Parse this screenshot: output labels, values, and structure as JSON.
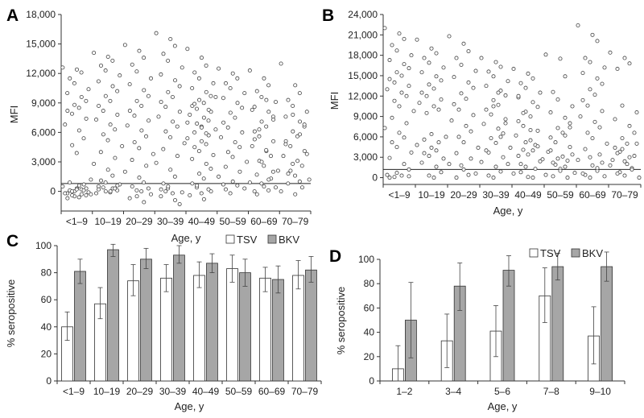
{
  "figure": {
    "colors": {
      "tsv": "#ffffff",
      "bkv": "#a6a6a6",
      "stroke": "#333333",
      "dot": "#444444"
    }
  },
  "chart_data": [
    {
      "panel": "A",
      "type": "scatter",
      "xlabel": "Age, y",
      "ylabel": "MFI",
      "categories": [
        "<1–9",
        "10–19",
        "20–29",
        "30–39",
        "40–49",
        "50–59",
        "60–69",
        "70–79"
      ],
      "ylim": [
        -2000,
        18000
      ],
      "yticks": [
        0,
        3000,
        6000,
        9000,
        12000,
        15000,
        18000
      ],
      "ytick_labels": [
        "0",
        "3,000",
        "6,000",
        "9,000",
        "12,000",
        "15,000",
        "18,000"
      ],
      "cutoff": 800,
      "series": [
        {
          "values": [
            12600,
            12400,
            12100,
            11500,
            11000,
            10400,
            10000,
            9600,
            9200,
            8800,
            8500,
            8200,
            7900,
            7400,
            6800,
            6200,
            5400,
            4700,
            3900,
            1200,
            900,
            700,
            500,
            300,
            200,
            100,
            0,
            -100,
            -200,
            -300,
            -400,
            -500,
            -600,
            -700,
            0,
            300,
            -200,
            600,
            100,
            -400,
            200,
            -300
          ]
        },
        {
          "values": [
            14100,
            13700,
            13300,
            12800,
            12300,
            11800,
            11200,
            10700,
            10200,
            9700,
            9200,
            8700,
            8200,
            7800,
            7300,
            6800,
            6300,
            5800,
            5200,
            4600,
            4000,
            3400,
            2800,
            2200,
            1600,
            1100,
            900,
            700,
            500,
            300,
            100,
            0,
            -100,
            200,
            400,
            600,
            -200,
            0,
            300
          ]
        },
        {
          "values": [
            14900,
            14300,
            13600,
            12900,
            12200,
            11500,
            10900,
            10300,
            9700,
            9200,
            8700,
            8200,
            7700,
            7200,
            6700,
            6200,
            5600,
            5000,
            4400,
            3800,
            3200,
            2600,
            2000,
            1400,
            900,
            500,
            100,
            -300,
            -700,
            -1100,
            300,
            -500,
            0
          ]
        },
        {
          "values": [
            16100,
            15500,
            14800,
            14000,
            13300,
            12600,
            11900,
            11300,
            10700,
            10100,
            9600,
            9100,
            8600,
            8100,
            7600,
            7100,
            6600,
            6100,
            5500,
            4900,
            4300,
            3600,
            2900,
            2200,
            1500,
            800,
            300,
            -100,
            -500,
            -900,
            -1300,
            500,
            -200,
            200,
            0
          ]
        },
        {
          "values": [
            14500,
            13600,
            12800,
            12100,
            11500,
            11000,
            10500,
            10100,
            9700,
            9300,
            9000,
            8700,
            8400,
            8100,
            7800,
            7500,
            7200,
            6900,
            6600,
            6300,
            6000,
            5700,
            5400,
            5100,
            4800,
            4500,
            4100,
            3700,
            3300,
            2800,
            2300,
            1800,
            1300,
            800,
            400,
            0,
            -400,
            -800,
            200,
            600,
            -200,
            9600,
            8900,
            8300,
            7000,
            6500,
            5900
          ]
        },
        {
          "values": [
            12500,
            12000,
            11500,
            11000,
            10500,
            10000,
            9500,
            9000,
            8500,
            8000,
            7500,
            7000,
            6500,
            6000,
            5500,
            5000,
            4500,
            4000,
            3500,
            3000,
            2500,
            2000,
            1500,
            1000,
            600,
            200,
            -200,
            300,
            700
          ]
        },
        {
          "values": [
            12300,
            11500,
            10800,
            10200,
            9600,
            9100,
            8600,
            8100,
            7600,
            7100,
            6600,
            6100,
            5600,
            5100,
            4600,
            4100,
            3600,
            3100,
            2600,
            2100,
            1700,
            1300,
            900,
            500,
            100,
            -300,
            800,
            400,
            0,
            1200,
            2000,
            3000,
            4200,
            5300,
            6300,
            7300,
            8300,
            9300
          ]
        },
        {
          "values": [
            13000,
            10800,
            10000,
            9300,
            8700,
            8100,
            7600,
            7100,
            6600,
            6100,
            5600,
            5100,
            4600,
            4100,
            3600,
            3100,
            2600,
            2100,
            1600,
            1200,
            800,
            400,
            0,
            -300,
            1000,
            1800,
            2800,
            3800,
            4800,
            5800,
            6800,
            7800
          ]
        }
      ]
    },
    {
      "panel": "B",
      "type": "scatter",
      "xlabel": "Age, y",
      "ylabel": "MFI",
      "categories": [
        "<1–9",
        "10–19",
        "20–29",
        "30–39",
        "40–49",
        "50–59",
        "60–69",
        "70–79"
      ],
      "ylim": [
        -1000,
        24000
      ],
      "yticks": [
        0,
        3000,
        6000,
        9000,
        12000,
        15000,
        18000,
        21000,
        24000
      ],
      "ytick_labels": [
        "0",
        "3,000",
        "6,000",
        "9,000",
        "12,000",
        "15,000",
        "18,000",
        "21,000",
        "24,000"
      ],
      "cutoff": 1200,
      "series": [
        {
          "values": [
            22000,
            21200,
            20400,
            19500,
            18700,
            18000,
            17300,
            16700,
            16100,
            15500,
            15000,
            14500,
            14000,
            13500,
            13000,
            12500,
            12000,
            11300,
            10500,
            9800,
            8800,
            8000,
            7300,
            6600,
            5900,
            5200,
            4500,
            3700,
            2900,
            2000,
            1200,
            700,
            300,
            0,
            100,
            200,
            400
          ]
        },
        {
          "values": [
            20300,
            19000,
            18300,
            17600,
            16900,
            16200,
            15500,
            14900,
            14300,
            13700,
            13100,
            12500,
            12000,
            11500,
            11000,
            10500,
            10000,
            9500,
            6400,
            6000,
            5600,
            5200,
            4800,
            4400,
            4000,
            3600,
            3200,
            2800,
            2200,
            1600,
            800,
            300,
            0
          ]
        },
        {
          "values": [
            20800,
            19700,
            18600,
            17600,
            16600,
            15700,
            14800,
            14000,
            13200,
            12400,
            11600,
            10800,
            10000,
            9200,
            8400,
            7600,
            6800,
            6000,
            5200,
            4400,
            3600,
            2800,
            2000,
            1200,
            400,
            0,
            1800,
            600
          ]
        },
        {
          "values": [
            17600,
            17000,
            16300,
            15600,
            14900,
            14200,
            13500,
            12800,
            12100,
            11400,
            10700,
            10000,
            9300,
            8600,
            7900,
            7200,
            6500,
            5800,
            5100,
            4400,
            3700,
            3000,
            2300,
            1600,
            900,
            300,
            0,
            2000,
            4000,
            6000,
            8000,
            10500,
            12500
          ]
        },
        {
          "values": [
            16000,
            15300,
            14600,
            13900,
            13200,
            12500,
            11800,
            11100,
            10400,
            9700,
            9000,
            8300,
            7600,
            6900,
            6200,
            5500,
            4800,
            4100,
            3400,
            2700,
            2000,
            1300,
            600,
            100,
            0,
            800,
            1600,
            2400,
            3200,
            4000,
            4600,
            5200,
            7000,
            12000,
            9500
          ]
        },
        {
          "values": [
            18100,
            17500,
            14900,
            12600,
            11500,
            10500,
            9600,
            8800,
            8000,
            7300,
            6600,
            5900,
            5200,
            4500,
            3800,
            3100,
            2500,
            1900,
            1300,
            700,
            200,
            0,
            400,
            1000,
            1600,
            2200,
            2800,
            3400,
            4000,
            6200,
            7400
          ]
        },
        {
          "values": [
            22400,
            21000,
            20100,
            17600,
            17000,
            16200,
            15400,
            14600,
            13800,
            13000,
            12200,
            11400,
            10600,
            9800,
            9000,
            8200,
            7400,
            6600,
            5800,
            5000,
            4200,
            3400,
            2600,
            1800,
            1000,
            400,
            0,
            200,
            600,
            1400,
            2200,
            3000
          ]
        },
        {
          "values": [
            18400,
            17600,
            16800,
            16000,
            10600,
            9600,
            8600,
            7600,
            6600,
            5800,
            5000,
            4400,
            3800,
            3200,
            2600,
            2000,
            1400,
            800,
            300,
            0,
            600,
            1200,
            1800,
            2400,
            3000,
            3600,
            4200,
            5000
          ]
        }
      ]
    },
    {
      "panel": "C",
      "type": "bar",
      "xlabel": "Age, y",
      "ylabel": "% seropositive",
      "categories": [
        "<1–9",
        "10–19",
        "20–29",
        "30–39",
        "40–49",
        "50–59",
        "60–69",
        "70–79"
      ],
      "ylim": [
        0,
        100
      ],
      "yticks": [
        0,
        20,
        40,
        60,
        80,
        100
      ],
      "ytick_labels": [
        "0",
        "20",
        "40",
        "60",
        "80",
        "100"
      ],
      "legend": "top-right",
      "series": [
        {
          "name": "TSV",
          "values": [
            40,
            57,
            74,
            76,
            78,
            83,
            76,
            78
          ],
          "err_low": [
            30,
            46,
            63,
            66,
            69,
            73,
            66,
            68
          ],
          "err_high": [
            51,
            69,
            86,
            86,
            88,
            93,
            84,
            89
          ]
        },
        {
          "name": "BKV",
          "values": [
            81,
            97,
            90,
            93,
            87,
            80,
            75,
            82
          ],
          "err_low": [
            72,
            92,
            83,
            87,
            80,
            70,
            65,
            73
          ],
          "err_high": [
            90,
            101,
            98,
            100,
            94,
            90,
            85,
            92
          ]
        }
      ]
    },
    {
      "panel": "D",
      "type": "bar",
      "xlabel": "Age, y",
      "ylabel": "% seropositive",
      "categories": [
        "1–2",
        "3–4",
        "5–6",
        "7–8",
        "9–10"
      ],
      "ylim": [
        0,
        100
      ],
      "yticks": [
        0,
        20,
        40,
        60,
        80,
        100
      ],
      "ytick_labels": [
        "0",
        "20",
        "40",
        "60",
        "80",
        "100"
      ],
      "legend": "top-right",
      "series": [
        {
          "name": "TSV",
          "values": [
            10,
            33,
            41,
            70,
            37
          ],
          "err_low": [
            0,
            11,
            20,
            48,
            14
          ],
          "err_high": [
            29,
            55,
            62,
            93,
            61
          ]
        },
        {
          "name": "BKV",
          "values": [
            50,
            78,
            91,
            94,
            94
          ],
          "err_low": [
            19,
            58,
            78,
            83,
            82
          ],
          "err_high": [
            81,
            97,
            103,
            105,
            106
          ]
        }
      ]
    }
  ]
}
